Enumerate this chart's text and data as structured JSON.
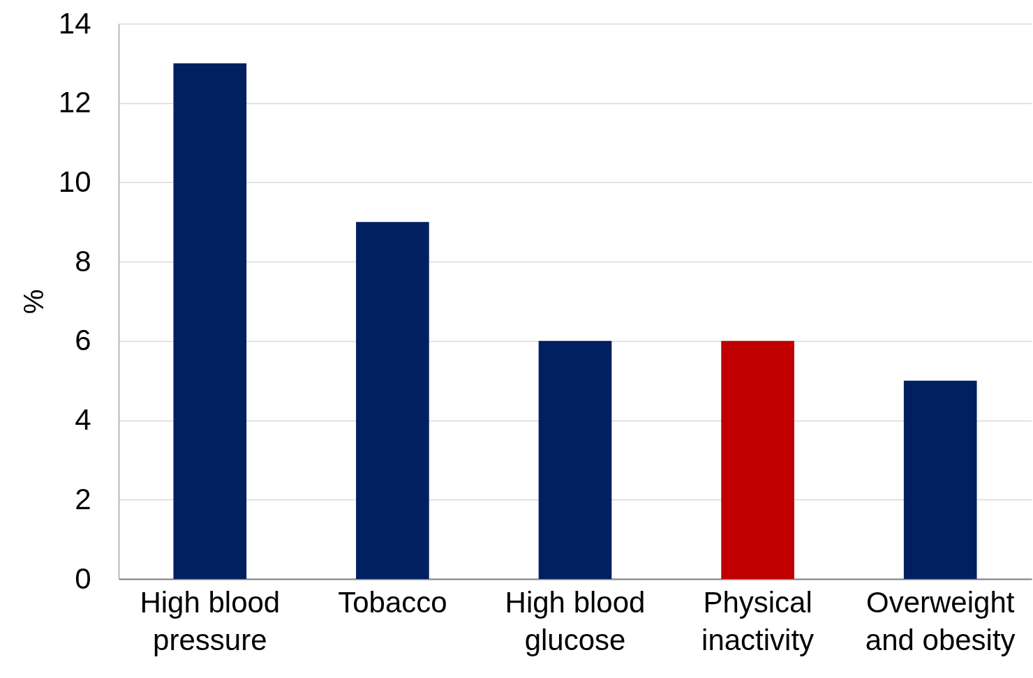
{
  "chart_data": {
    "type": "bar",
    "ylabel": "%",
    "categories": [
      "High blood pressure",
      "Tobacco",
      "High blood glucose",
      "Physical inactivity",
      "Overweight and obesity"
    ],
    "values": [
      13,
      9,
      6,
      6,
      5
    ],
    "colors": [
      "#002060",
      "#002060",
      "#002060",
      "#c00000",
      "#002060"
    ],
    "ylim": [
      0,
      14
    ],
    "yticks": [
      0,
      2,
      4,
      6,
      8,
      10,
      12,
      14
    ],
    "grid": "y"
  }
}
